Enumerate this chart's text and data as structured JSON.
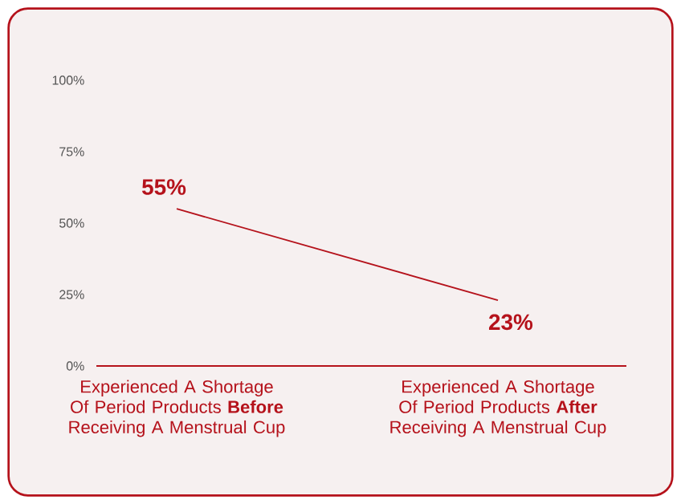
{
  "chart_data": {
    "type": "line",
    "categories": [
      "Experienced A Shortage Of Period Products **Before** Receiving A Menstrual Cup",
      "Experienced A Shortage Of Period Products **After** Receiving A Menstrual Cup"
    ],
    "values": [
      55,
      23
    ],
    "value_labels": [
      "55%",
      "23%"
    ],
    "color": "#b5121b",
    "ylim": [
      0,
      100
    ],
    "yticks": [
      {
        "value": 0,
        "label": "0%"
      },
      {
        "value": 25,
        "label": "25%"
      },
      {
        "value": 50,
        "label": "50%"
      },
      {
        "value": 75,
        "label": "75%"
      },
      {
        "value": 100,
        "label": "100%"
      }
    ]
  }
}
